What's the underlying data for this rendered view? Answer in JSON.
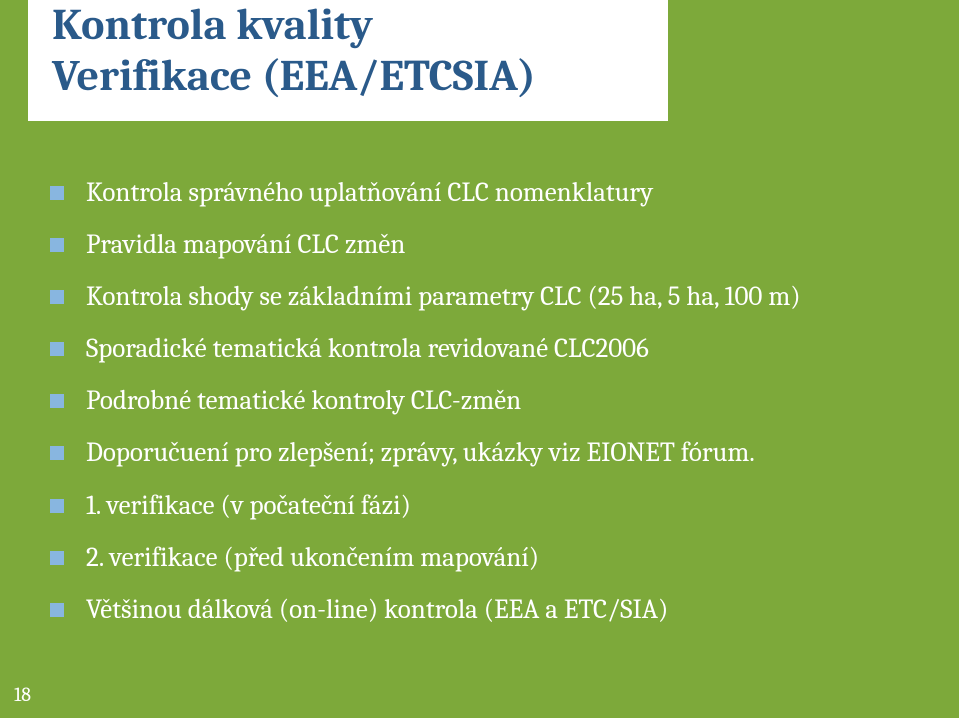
{
  "slide": {
    "title_line1": "Kontrola kvality",
    "title_line2": "Verifikace (EEA/ETCSIA)",
    "title_color": "#2a5a8a",
    "title_fontsize": 44,
    "title_box_bg": "#ffffff",
    "background_color": "#7da93a",
    "bullets": [
      "Kontrola správného uplatňování CLC nomenklatury",
      "Pravidla mapování CLC změn",
      "Kontrola shody se základními parametry CLC (25 ha, 5 ha, 100 m)",
      "Sporadické tematická kontrola revidované CLC2006",
      "Podrobné tematické kontroly CLC-změn",
      "Doporučuení pro zlepšení; zprávy, ukázky viz EIONET fórum.",
      "1. verifikace (v počateční fázi)",
      "2. verifikace (před ukončením mapování)",
      "Většinou dálková (on-line) kontrola  (EEA a ETC/SIA)"
    ],
    "bullet_color": "#ffffff",
    "bullet_fontsize": 27,
    "bullet_marker_color": "#88b6e0",
    "page_number": "18",
    "page_number_color": "#ffffff",
    "page_number_fontsize": 20
  }
}
